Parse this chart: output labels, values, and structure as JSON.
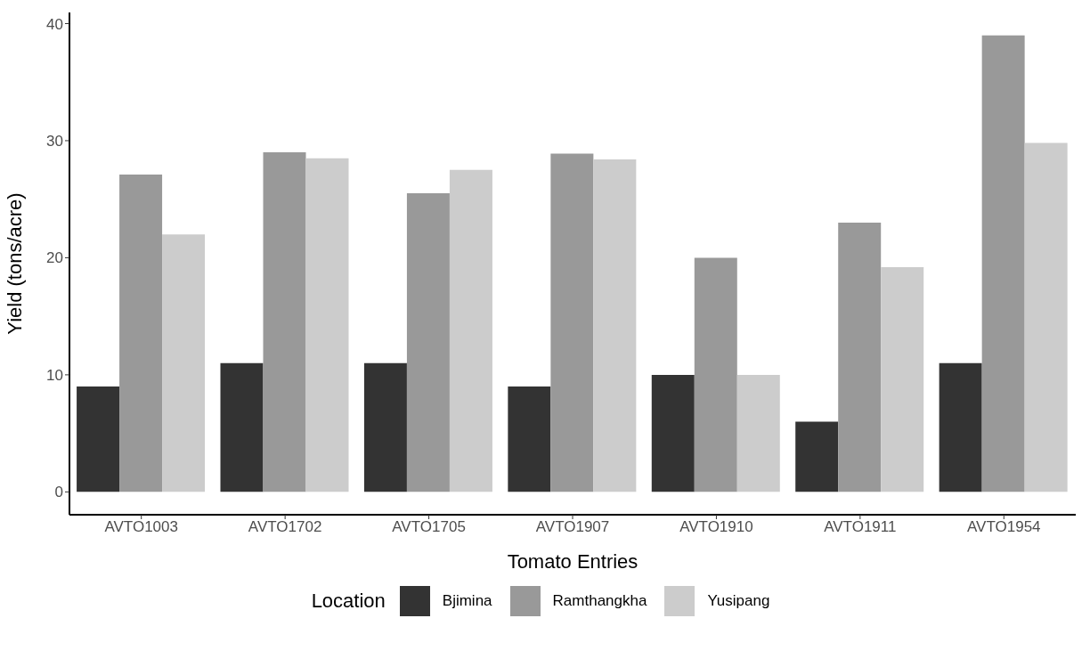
{
  "chart_data": {
    "type": "bar",
    "xlabel": "Tomato Entries",
    "ylabel": "Yield (tons/acre)",
    "legend_title": "Location",
    "categories": [
      "AVTO1003",
      "AVTO1702",
      "AVTO1705",
      "AVTO1907",
      "AVTO1910",
      "AVTO1911",
      "AVTO1954"
    ],
    "series": [
      {
        "name": "Bjimina",
        "color": "#333333",
        "values": [
          9,
          11,
          11,
          9,
          10,
          6,
          11
        ]
      },
      {
        "name": "Ramthangkha",
        "color": "#999999",
        "values": [
          27.1,
          29,
          25.5,
          28.9,
          20,
          23,
          39
        ]
      },
      {
        "name": "Yusipang",
        "color": "#cccccc",
        "values": [
          22,
          28.5,
          27.5,
          28.4,
          10,
          19.2,
          29.8
        ]
      }
    ],
    "ylim": [
      -1.95,
      40.95
    ],
    "yticks": [
      0,
      10,
      20,
      30,
      40
    ],
    "grid": false,
    "legend": "bottom"
  }
}
